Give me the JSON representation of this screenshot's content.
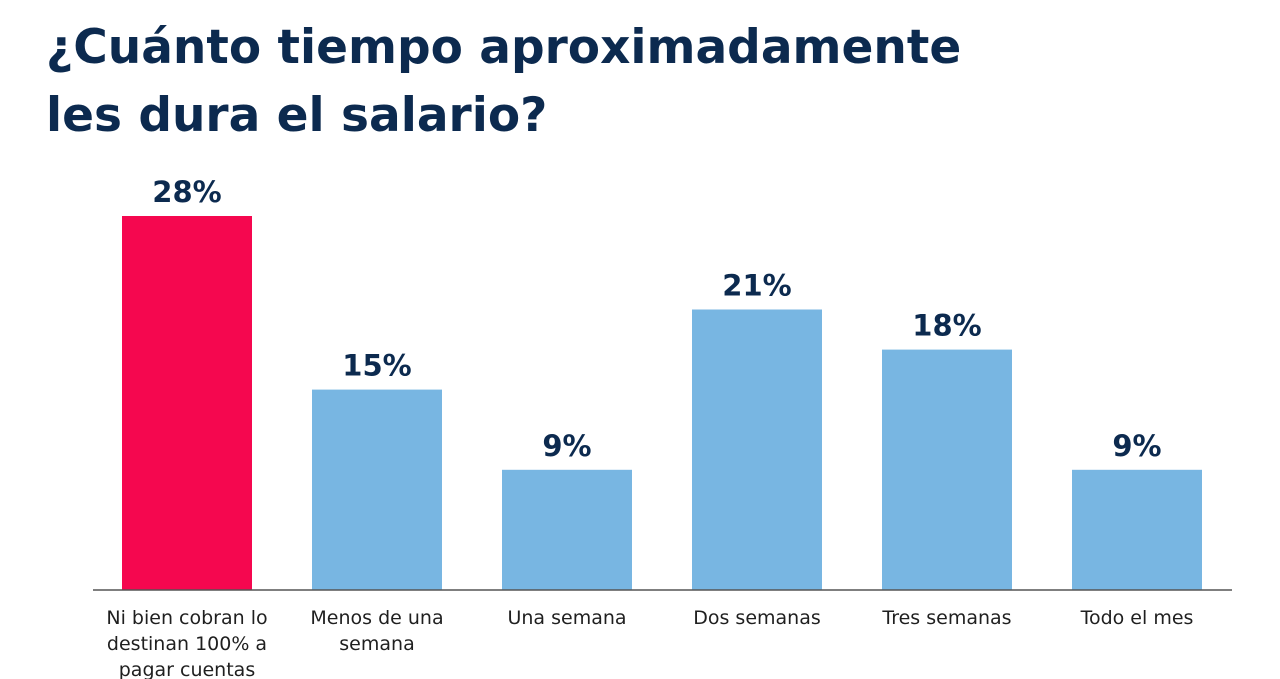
{
  "title_lines": [
    "¿Cuánto tiempo aproximadamente",
    "les dura el salario?"
  ],
  "chart_data": {
    "type": "bar",
    "title": "¿Cuánto tiempo aproximadamente les dura el salario?",
    "categories": [
      [
        "Ni bien cobran lo",
        "destinan 100% a",
        "pagar cuentas"
      ],
      [
        "Menos de una",
        "semana"
      ],
      [
        "Una semana"
      ],
      [
        "Dos semanas"
      ],
      [
        "Tres semanas"
      ],
      [
        "Todo el mes"
      ]
    ],
    "values": [
      28,
      15,
      9,
      21,
      18,
      9
    ],
    "value_labels": [
      "28%",
      "15%",
      "9%",
      "21%",
      "18%",
      "9%"
    ],
    "unit": "%",
    "ylim": [
      0,
      28
    ],
    "grid": false,
    "colors": {
      "highlight": "#f5074f",
      "default": "#78b6e2",
      "axis": "#555555",
      "title": "#0c2a4f"
    },
    "highlight_index": 0
  }
}
